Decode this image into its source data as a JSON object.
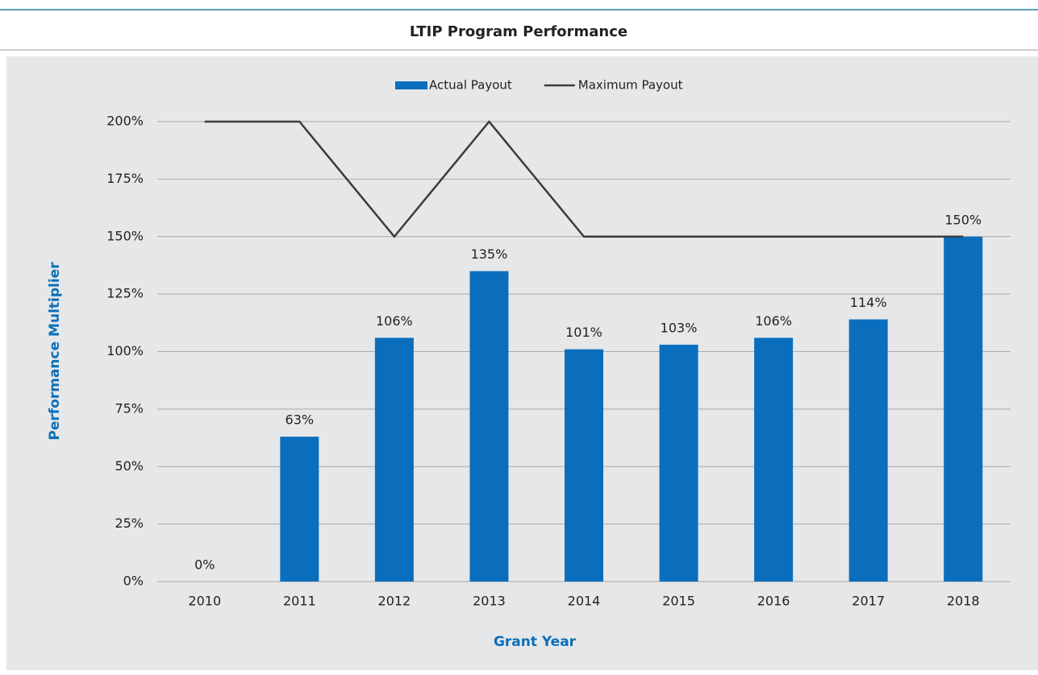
{
  "chart_data": {
    "type": "bar",
    "title": "LTIP Program Performance",
    "x_label": "Grant Year",
    "y_label": "Performance Multiplier",
    "categories": [
      "2010",
      "2011",
      "2012",
      "2013",
      "2014",
      "2015",
      "2016",
      "2017",
      "2018"
    ],
    "series": [
      {
        "name": "Actual Payout",
        "type": "bar",
        "color": "#0a6ebd",
        "values": [
          0,
          63,
          106,
          135,
          101,
          103,
          106,
          114,
          150
        ],
        "value_labels": [
          "0%",
          "63%",
          "106%",
          "135%",
          "101%",
          "103%",
          "106%",
          "114%",
          "150%"
        ]
      },
      {
        "name": "Maximum Payout",
        "type": "line",
        "color": "#3b3b3d",
        "values": [
          200,
          200,
          150,
          200,
          150,
          150,
          150,
          150,
          150
        ]
      }
    ],
    "ylim": [
      0,
      200
    ],
    "yticks": [
      {
        "value": 0,
        "label": "0%"
      },
      {
        "value": 25,
        "label": "25%"
      },
      {
        "value": 50,
        "label": "50%"
      },
      {
        "value": 75,
        "label": "75%"
      },
      {
        "value": 100,
        "label": "100%"
      },
      {
        "value": 125,
        "label": "125%"
      },
      {
        "value": 150,
        "label": "150%"
      },
      {
        "value": 175,
        "label": "175%"
      },
      {
        "value": 200,
        "label": "200%"
      }
    ],
    "grid": true,
    "legend": "top"
  }
}
